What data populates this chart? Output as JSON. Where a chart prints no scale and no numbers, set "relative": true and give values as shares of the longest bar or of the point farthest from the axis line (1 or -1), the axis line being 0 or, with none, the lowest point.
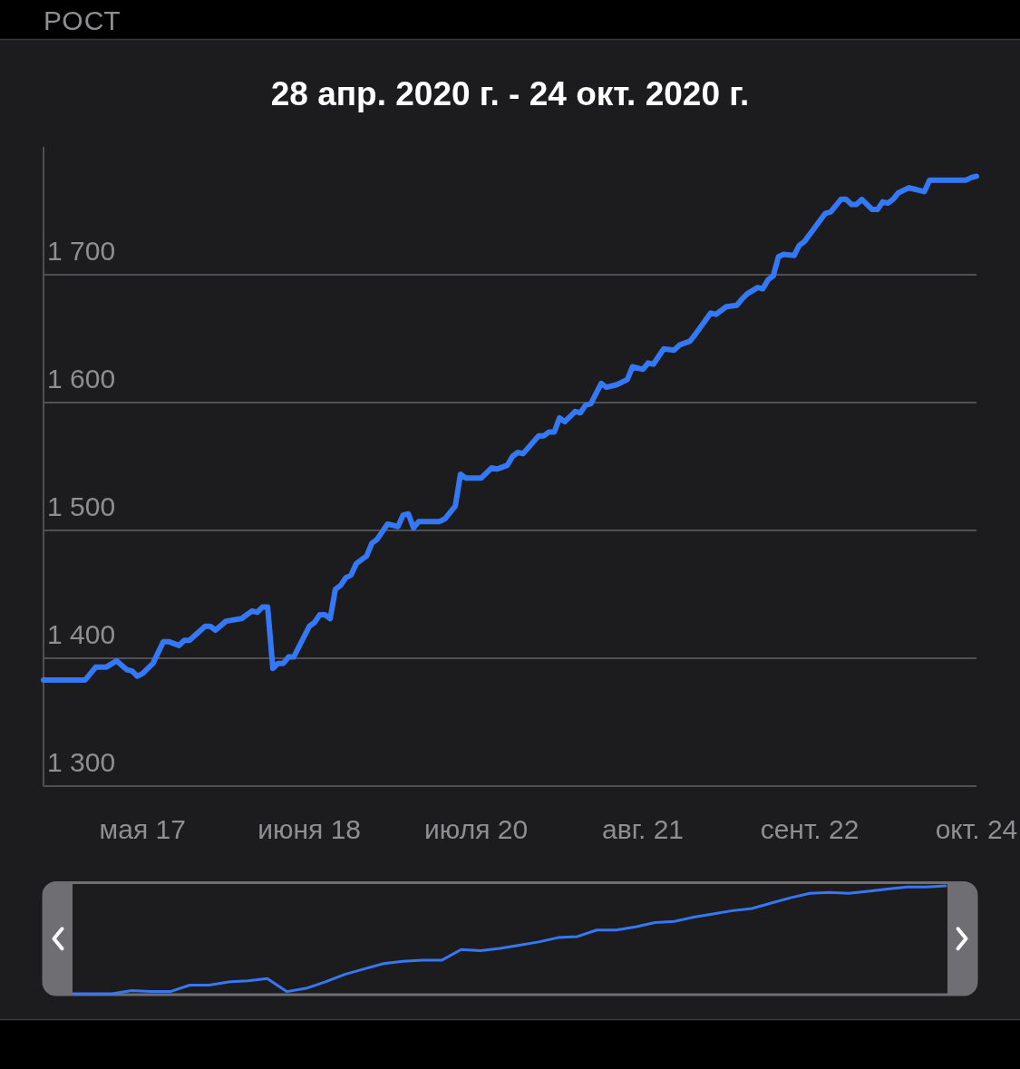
{
  "chart_data": [
    {
      "type": "line",
      "title": "28 апр. 2020 г. - 24 окт. 2020 г.",
      "annotations": [
        "РОСТ"
      ],
      "color": "#3478f6",
      "grid": "y",
      "x": [
        "2020-04-28",
        "2020-05-06",
        "2020-05-08",
        "2020-05-10",
        "2020-05-12",
        "2020-05-14",
        "2020-05-15",
        "2020-05-16",
        "2020-05-17",
        "2020-05-19",
        "2020-05-21",
        "2020-05-22",
        "2020-05-24",
        "2020-05-25",
        "2020-05-26",
        "2020-05-29",
        "2020-05-30",
        "2020-05-31",
        "2020-06-02",
        "2020-06-05",
        "2020-06-07",
        "2020-06-08",
        "2020-06-09",
        "2020-06-10",
        "2020-06-11",
        "2020-06-12",
        "2020-06-13",
        "2020-06-14",
        "2020-06-15",
        "2020-06-18",
        "2020-06-19",
        "2020-06-20",
        "2020-06-21",
        "2020-06-22",
        "2020-06-23",
        "2020-06-24",
        "2020-06-25",
        "2020-06-26",
        "2020-06-27",
        "2020-06-29",
        "2020-06-30",
        "2020-07-01",
        "2020-07-03",
        "2020-07-05",
        "2020-07-06",
        "2020-07-07",
        "2020-07-08",
        "2020-07-09",
        "2020-07-13",
        "2020-07-14",
        "2020-07-16",
        "2020-07-17",
        "2020-07-18",
        "2020-07-21",
        "2020-07-23",
        "2020-07-24",
        "2020-07-26",
        "2020-07-27",
        "2020-07-28",
        "2020-07-29",
        "2020-08-01",
        "2020-08-02",
        "2020-08-03",
        "2020-08-04",
        "2020-08-05",
        "2020-08-06",
        "2020-08-08",
        "2020-08-09",
        "2020-08-10",
        "2020-08-11",
        "2020-08-13",
        "2020-08-14",
        "2020-08-16",
        "2020-08-18",
        "2020-08-19",
        "2020-08-21",
        "2020-08-22",
        "2020-08-23",
        "2020-08-25",
        "2020-08-27",
        "2020-08-28",
        "2020-08-30",
        "2020-08-31",
        "2020-09-03",
        "2020-09-04",
        "2020-09-06",
        "2020-09-08",
        "2020-09-09",
        "2020-09-10",
        "2020-09-12",
        "2020-09-13",
        "2020-09-14",
        "2020-09-15",
        "2020-09-16",
        "2020-09-17",
        "2020-09-19",
        "2020-09-20",
        "2020-09-21",
        "2020-09-25",
        "2020-09-26",
        "2020-09-28",
        "2020-09-29",
        "2020-09-30",
        "2020-10-01",
        "2020-10-02",
        "2020-10-04",
        "2020-10-05",
        "2020-10-06",
        "2020-10-07",
        "2020-10-08",
        "2020-10-09",
        "2020-10-11",
        "2020-10-12",
        "2020-10-14",
        "2020-10-15",
        "2020-10-22",
        "2020-10-23",
        "2020-10-24"
      ],
      "values": [
        1383,
        1383,
        1393,
        1393,
        1398,
        1391,
        1390,
        1386,
        1388,
        1396,
        1413,
        1413,
        1410,
        1414,
        1414,
        1425,
        1425,
        1422,
        1429,
        1431,
        1437,
        1436,
        1440,
        1440,
        1392,
        1396,
        1396,
        1401,
        1401,
        1425,
        1428,
        1434,
        1434,
        1431,
        1454,
        1457,
        1463,
        1465,
        1474,
        1480,
        1490,
        1493,
        1505,
        1503,
        1512,
        1513,
        1502,
        1507,
        1507,
        1509,
        1519,
        1544,
        1541,
        1541,
        1549,
        1548,
        1551,
        1558,
        1561,
        1560,
        1574,
        1574,
        1577,
        1577,
        1588,
        1585,
        1593,
        1592,
        1598,
        1599,
        1615,
        1612,
        1614,
        1618,
        1628,
        1626,
        1631,
        1630,
        1642,
        1641,
        1645,
        1648,
        1653,
        1670,
        1669,
        1675,
        1676,
        1681,
        1685,
        1690,
        1689,
        1696,
        1699,
        1714,
        1716,
        1715,
        1723,
        1726,
        1748,
        1749,
        1759,
        1759,
        1755,
        1755,
        1759,
        1751,
        1751,
        1757,
        1756,
        1759,
        1764,
        1768,
        1767,
        1765,
        1774,
        1774,
        1776,
        1777
      ],
      "xlim": [
        "2020-04-28",
        "2020-10-24"
      ],
      "xticks": [
        {
          "value": "2020-05-17",
          "label": "мая 17"
        },
        {
          "value": "2020-06-18",
          "label": "июня 18"
        },
        {
          "value": "2020-07-20",
          "label": "июля 20"
        },
        {
          "value": "2020-08-21",
          "label": "авг. 21"
        },
        {
          "value": "2020-09-22",
          "label": "сент. 22"
        },
        {
          "value": "2020-10-24",
          "label": "окт. 24"
        }
      ],
      "ylim": [
        1300,
        1800
      ],
      "yticks": [
        {
          "value": 1300,
          "label": "1 300"
        },
        {
          "value": 1400,
          "label": "1 400"
        },
        {
          "value": 1500,
          "label": "1 500"
        },
        {
          "value": 1600,
          "label": "1 600"
        },
        {
          "value": 1700,
          "label": "1 700"
        }
      ]
    },
    {
      "type": "line",
      "relative": true,
      "color": "#3478f6",
      "categories": [
        null,
        null,
        null,
        null,
        null,
        null,
        null,
        null,
        null,
        null,
        null,
        null,
        null,
        null,
        null,
        null,
        null,
        null,
        null,
        null,
        null,
        null,
        null,
        null,
        null,
        null,
        null,
        null,
        null,
        null,
        null,
        null,
        null,
        null,
        null,
        null,
        null,
        null,
        null,
        null,
        null,
        null,
        null,
        null,
        null,
        null
      ],
      "values": [
        0,
        0,
        0,
        0.03,
        0.02,
        0.02,
        0.08,
        0.08,
        0.11,
        0.12,
        0.14,
        0.02,
        0.05,
        0.11,
        0.18,
        0.23,
        0.28,
        0.3,
        0.31,
        0.31,
        0.41,
        0.4,
        0.42,
        0.45,
        0.48,
        0.52,
        0.53,
        0.59,
        0.59,
        0.62,
        0.66,
        0.67,
        0.71,
        0.74,
        0.77,
        0.79,
        0.84,
        0.89,
        0.93,
        0.94,
        0.93,
        0.95,
        0.97,
        0.99,
        0.99,
        1
      ]
    }
  ]
}
